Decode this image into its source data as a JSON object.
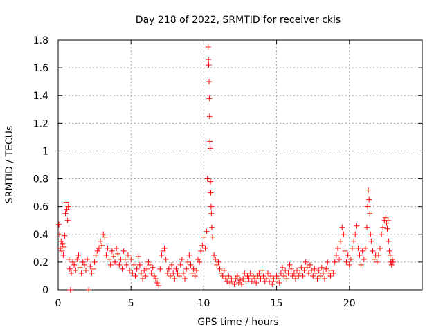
{
  "chart_data": {
    "type": "scatter",
    "title": "Day 218 of 2022, SRMTID for receiver ckis",
    "xlabel": "GPS time / hours",
    "ylabel": "SRMTID / TECUs",
    "xlim": [
      0,
      25
    ],
    "ylim": [
      0,
      1.8
    ],
    "xticks": [
      0,
      5,
      10,
      15,
      20
    ],
    "yticks": [
      0,
      0.2,
      0.4,
      0.6,
      0.8,
      1,
      1.2,
      1.4,
      1.6,
      1.8
    ],
    "xtick_labels": [
      "0",
      "5",
      "10",
      "15",
      "20"
    ],
    "ytick_labels": [
      "0",
      "0.2",
      "0.4",
      "0.6",
      "0.8",
      "1",
      "1.2",
      "1.4",
      "1.6",
      "1.8"
    ],
    "grid": true,
    "marker": "+",
    "series": [
      {
        "name": "SRMTID",
        "color": "#ff0000",
        "points": [
          [
            0.05,
            0.47
          ],
          [
            0.1,
            0.4
          ],
          [
            0.15,
            0.3
          ],
          [
            0.2,
            0.35
          ],
          [
            0.25,
            0.28
          ],
          [
            0.3,
            0.33
          ],
          [
            0.35,
            0.25
          ],
          [
            0.4,
            0.31
          ],
          [
            0.45,
            0.39
          ],
          [
            0.5,
            0.55
          ],
          [
            0.55,
            0.63
          ],
          [
            0.6,
            0.58
          ],
          [
            0.65,
            0.5
          ],
          [
            0.7,
            0.6
          ],
          [
            0.75,
            0.22
          ],
          [
            0.8,
            0.15
          ],
          [
            0.85,
            0.0
          ],
          [
            0.9,
            0.12
          ],
          [
            1.0,
            0.2
          ],
          [
            1.1,
            0.18
          ],
          [
            1.2,
            0.14
          ],
          [
            1.3,
            0.22
          ],
          [
            1.4,
            0.25
          ],
          [
            1.5,
            0.16
          ],
          [
            1.6,
            0.12
          ],
          [
            1.7,
            0.2
          ],
          [
            1.8,
            0.18
          ],
          [
            1.9,
            0.14
          ],
          [
            2.0,
            0.22
          ],
          [
            2.1,
            0.0
          ],
          [
            2.2,
            0.17
          ],
          [
            2.3,
            0.12
          ],
          [
            2.4,
            0.15
          ],
          [
            2.5,
            0.2
          ],
          [
            2.6,
            0.25
          ],
          [
            2.7,
            0.28
          ],
          [
            2.8,
            0.3
          ],
          [
            2.9,
            0.35
          ],
          [
            3.0,
            0.32
          ],
          [
            3.1,
            0.4
          ],
          [
            3.2,
            0.38
          ],
          [
            3.3,
            0.25
          ],
          [
            3.4,
            0.3
          ],
          [
            3.5,
            0.22
          ],
          [
            3.6,
            0.18
          ],
          [
            3.7,
            0.28
          ],
          [
            3.8,
            0.24
          ],
          [
            3.9,
            0.2
          ],
          [
            4.0,
            0.3
          ],
          [
            4.1,
            0.26
          ],
          [
            4.2,
            0.18
          ],
          [
            4.3,
            0.22
          ],
          [
            4.4,
            0.15
          ],
          [
            4.5,
            0.28
          ],
          [
            4.6,
            0.22
          ],
          [
            4.7,
            0.18
          ],
          [
            4.8,
            0.25
          ],
          [
            4.9,
            0.14
          ],
          [
            5.0,
            0.22
          ],
          [
            5.1,
            0.12
          ],
          [
            5.2,
            0.18
          ],
          [
            5.3,
            0.1
          ],
          [
            5.4,
            0.15
          ],
          [
            5.5,
            0.24
          ],
          [
            5.6,
            0.18
          ],
          [
            5.7,
            0.12
          ],
          [
            5.8,
            0.08
          ],
          [
            5.9,
            0.14
          ],
          [
            6.0,
            0.1
          ],
          [
            6.1,
            0.15
          ],
          [
            6.2,
            0.2
          ],
          [
            6.3,
            0.18
          ],
          [
            6.4,
            0.12
          ],
          [
            6.5,
            0.16
          ],
          [
            6.6,
            0.1
          ],
          [
            6.7,
            0.08
          ],
          [
            6.8,
            0.05
          ],
          [
            6.9,
            0.03
          ],
          [
            7.0,
            0.15
          ],
          [
            7.1,
            0.25
          ],
          [
            7.2,
            0.28
          ],
          [
            7.3,
            0.3
          ],
          [
            7.4,
            0.22
          ],
          [
            7.5,
            0.12
          ],
          [
            7.6,
            0.15
          ],
          [
            7.7,
            0.1
          ],
          [
            7.8,
            0.18
          ],
          [
            7.9,
            0.12
          ],
          [
            8.0,
            0.08
          ],
          [
            8.1,
            0.15
          ],
          [
            8.2,
            0.12
          ],
          [
            8.3,
            0.1
          ],
          [
            8.4,
            0.18
          ],
          [
            8.5,
            0.22
          ],
          [
            8.6,
            0.12
          ],
          [
            8.7,
            0.08
          ],
          [
            8.8,
            0.15
          ],
          [
            8.9,
            0.2
          ],
          [
            9.0,
            0.25
          ],
          [
            9.1,
            0.18
          ],
          [
            9.2,
            0.12
          ],
          [
            9.3,
            0.15
          ],
          [
            9.4,
            0.1
          ],
          [
            9.5,
            0.14
          ],
          [
            9.6,
            0.22
          ],
          [
            9.7,
            0.2
          ],
          [
            9.8,
            0.28
          ],
          [
            9.9,
            0.32
          ],
          [
            10.0,
            0.38
          ],
          [
            10.1,
            0.3
          ],
          [
            10.2,
            0.42
          ],
          [
            10.25,
            0.8
          ],
          [
            10.3,
            1.75
          ],
          [
            10.32,
            1.66
          ],
          [
            10.34,
            1.62
          ],
          [
            10.36,
            1.5
          ],
          [
            10.38,
            1.38
          ],
          [
            10.4,
            1.25
          ],
          [
            10.42,
            1.07
          ],
          [
            10.44,
            1.02
          ],
          [
            10.46,
            0.78
          ],
          [
            10.48,
            0.7
          ],
          [
            10.5,
            0.6
          ],
          [
            10.52,
            0.55
          ],
          [
            10.55,
            0.45
          ],
          [
            10.6,
            0.38
          ],
          [
            10.7,
            0.25
          ],
          [
            10.8,
            0.22
          ],
          [
            10.9,
            0.18
          ],
          [
            11.0,
            0.2
          ],
          [
            11.1,
            0.15
          ],
          [
            11.2,
            0.12
          ],
          [
            11.3,
            0.1
          ],
          [
            11.4,
            0.14
          ],
          [
            11.5,
            0.08
          ],
          [
            11.6,
            0.06
          ],
          [
            11.7,
            0.1
          ],
          [
            11.8,
            0.05
          ],
          [
            11.9,
            0.08
          ],
          [
            12.0,
            0.06
          ],
          [
            12.1,
            0.04
          ],
          [
            12.2,
            0.08
          ],
          [
            12.3,
            0.1
          ],
          [
            12.4,
            0.05
          ],
          [
            12.5,
            0.07
          ],
          [
            12.6,
            0.04
          ],
          [
            12.7,
            0.08
          ],
          [
            12.8,
            0.12
          ],
          [
            12.9,
            0.06
          ],
          [
            13.0,
            0.1
          ],
          [
            13.1,
            0.08
          ],
          [
            13.2,
            0.12
          ],
          [
            13.3,
            0.06
          ],
          [
            13.4,
            0.1
          ],
          [
            13.5,
            0.08
          ],
          [
            13.6,
            0.05
          ],
          [
            13.7,
            0.1
          ],
          [
            13.8,
            0.12
          ],
          [
            13.9,
            0.08
          ],
          [
            14.0,
            0.14
          ],
          [
            14.1,
            0.1
          ],
          [
            14.2,
            0.06
          ],
          [
            14.3,
            0.08
          ],
          [
            14.4,
            0.12
          ],
          [
            14.5,
            0.06
          ],
          [
            14.6,
            0.1
          ],
          [
            14.7,
            0.04
          ],
          [
            14.8,
            0.08
          ],
          [
            14.9,
            0.06
          ],
          [
            15.0,
            0.1
          ],
          [
            15.1,
            0.08
          ],
          [
            15.2,
            0.05
          ],
          [
            15.3,
            0.12
          ],
          [
            15.4,
            0.16
          ],
          [
            15.5,
            0.1
          ],
          [
            15.6,
            0.14
          ],
          [
            15.7,
            0.08
          ],
          [
            15.8,
            0.12
          ],
          [
            15.9,
            0.18
          ],
          [
            16.0,
            0.15
          ],
          [
            16.1,
            0.1
          ],
          [
            16.2,
            0.12
          ],
          [
            16.3,
            0.08
          ],
          [
            16.4,
            0.14
          ],
          [
            16.5,
            0.1
          ],
          [
            16.6,
            0.12
          ],
          [
            16.7,
            0.16
          ],
          [
            16.8,
            0.1
          ],
          [
            16.9,
            0.14
          ],
          [
            17.0,
            0.2
          ],
          [
            17.1,
            0.16
          ],
          [
            17.2,
            0.12
          ],
          [
            17.3,
            0.18
          ],
          [
            17.4,
            0.14
          ],
          [
            17.5,
            0.1
          ],
          [
            17.6,
            0.15
          ],
          [
            17.7,
            0.12
          ],
          [
            17.8,
            0.08
          ],
          [
            17.9,
            0.14
          ],
          [
            18.0,
            0.1
          ],
          [
            18.1,
            0.16
          ],
          [
            18.2,
            0.12
          ],
          [
            18.3,
            0.08
          ],
          [
            18.4,
            0.15
          ],
          [
            18.5,
            0.2
          ],
          [
            18.6,
            0.12
          ],
          [
            18.7,
            0.1
          ],
          [
            18.8,
            0.14
          ],
          [
            18.9,
            0.12
          ],
          [
            19.0,
            0.2
          ],
          [
            19.1,
            0.25
          ],
          [
            19.2,
            0.3
          ],
          [
            19.3,
            0.22
          ],
          [
            19.4,
            0.35
          ],
          [
            19.5,
            0.45
          ],
          [
            19.6,
            0.4
          ],
          [
            19.7,
            0.28
          ],
          [
            19.8,
            0.2
          ],
          [
            19.9,
            0.25
          ],
          [
            20.0,
            0.18
          ],
          [
            20.1,
            0.22
          ],
          [
            20.2,
            0.3
          ],
          [
            20.3,
            0.35
          ],
          [
            20.4,
            0.4
          ],
          [
            20.5,
            0.46
          ],
          [
            20.6,
            0.3
          ],
          [
            20.7,
            0.25
          ],
          [
            20.8,
            0.18
          ],
          [
            20.9,
            0.28
          ],
          [
            21.0,
            0.22
          ],
          [
            21.1,
            0.3
          ],
          [
            21.2,
            0.45
          ],
          [
            21.25,
            0.6
          ],
          [
            21.3,
            0.72
          ],
          [
            21.35,
            0.65
          ],
          [
            21.4,
            0.55
          ],
          [
            21.45,
            0.4
          ],
          [
            21.5,
            0.35
          ],
          [
            21.6,
            0.28
          ],
          [
            21.7,
            0.22
          ],
          [
            21.8,
            0.25
          ],
          [
            21.9,
            0.2
          ],
          [
            22.0,
            0.25
          ],
          [
            22.1,
            0.3
          ],
          [
            22.2,
            0.4
          ],
          [
            22.3,
            0.45
          ],
          [
            22.4,
            0.5
          ],
          [
            22.5,
            0.52
          ],
          [
            22.55,
            0.48
          ],
          [
            22.6,
            0.44
          ],
          [
            22.65,
            0.5
          ],
          [
            22.7,
            0.35
          ],
          [
            22.75,
            0.28
          ],
          [
            22.8,
            0.25
          ],
          [
            22.85,
            0.2
          ],
          [
            22.9,
            0.18
          ],
          [
            22.95,
            0.22
          ],
          [
            23.0,
            0.2
          ]
        ]
      }
    ]
  }
}
